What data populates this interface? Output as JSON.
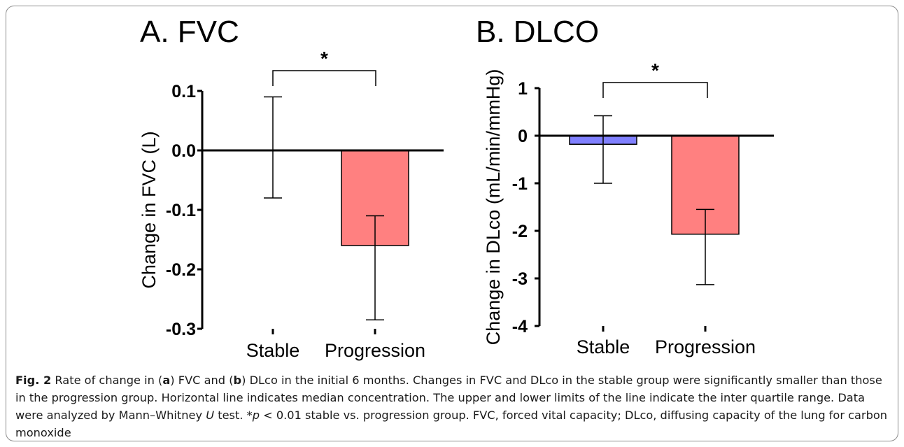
{
  "chart_data": [
    {
      "type": "bar",
      "title": "A. FVC",
      "ylabel": "Change in FVC (L)",
      "xlabel": "",
      "categories": [
        "Stable",
        "Progression"
      ],
      "values": [
        0.0,
        -0.16
      ],
      "error_low": [
        -0.08,
        -0.285
      ],
      "error_high": [
        0.09,
        -0.11
      ],
      "bar_colors": [
        "#ffffff",
        "#ff8080"
      ],
      "ylim": [
        -0.3,
        0.1
      ],
      "yticks": [
        0.1,
        0.0,
        -0.1,
        -0.2,
        -0.3
      ],
      "ytick_labels": [
        "0.1",
        "0.0",
        "-0.1",
        "-0.2",
        "-0.3"
      ],
      "significance": "*",
      "grid": false
    },
    {
      "type": "bar",
      "title": "B. DLCO",
      "ylabel": "Change in DLco (mL/min/mmHg)",
      "xlabel": "",
      "categories": [
        "Stable",
        "Progression"
      ],
      "values": [
        -0.18,
        -2.07
      ],
      "error_low": [
        -1.0,
        -3.13
      ],
      "error_high": [
        0.42,
        -1.55
      ],
      "bar_colors": [
        "#8080ff",
        "#ff8080"
      ],
      "ylim": [
        -4,
        1
      ],
      "yticks": [
        1,
        0,
        -1,
        -2,
        -3,
        -4
      ],
      "ytick_labels": [
        "1",
        "0",
        "-1",
        "-2",
        "-3",
        "-4"
      ],
      "significance": "*",
      "grid": false
    }
  ],
  "caption": {
    "fig_label": "Fig. 2",
    "p1": "Rate of change in (",
    "a": "a",
    "p2": ") FVC and (",
    "b": "b",
    "p3": ") DLco in the initial 6 months. Changes in FVC and DLco in the stable group were significantly smaller than those in the progression group. Horizontal line indicates median concentration. The upper and lower limits of the line indicate the inter quartile range. Data were analyzed by Mann–Whitney ",
    "u": "U",
    "p4": " test. *",
    "p": "p",
    "p5": " < 0.01 stable vs. progression group. FVC, forced vital capacity; DLco, diffusing capacity of the lung for carbon monoxide"
  }
}
